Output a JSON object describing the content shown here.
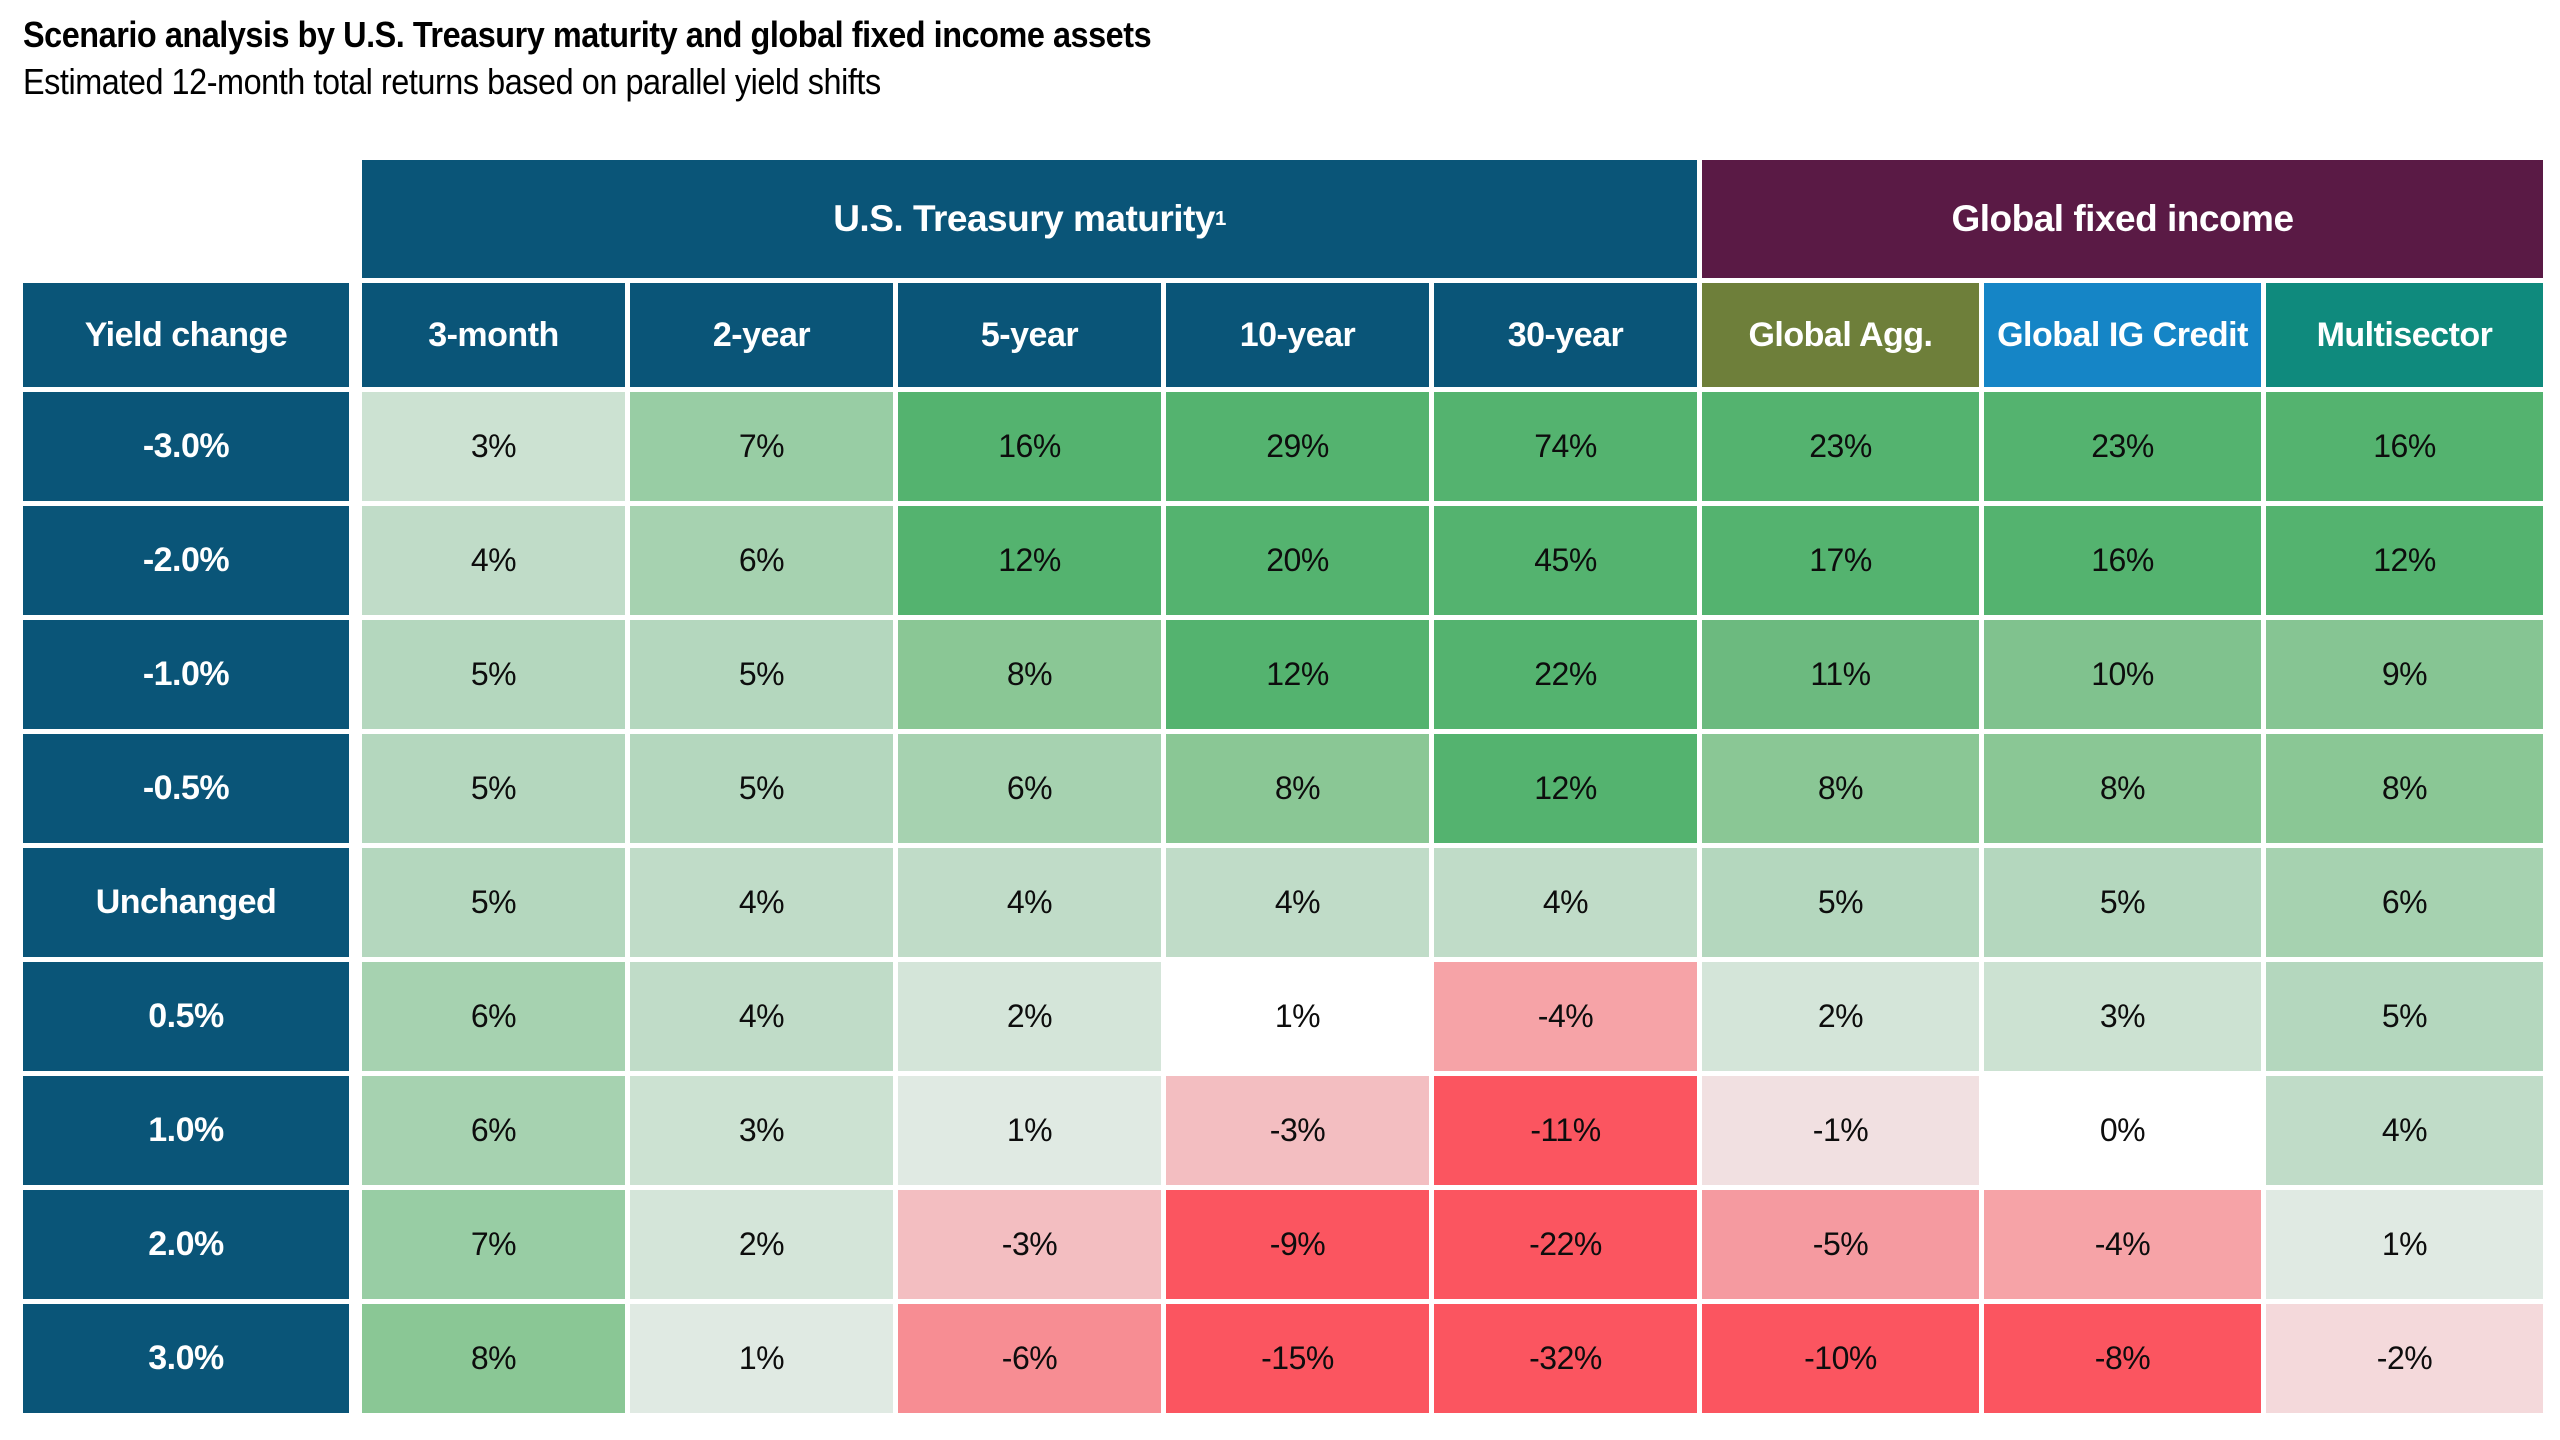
{
  "page": {
    "title": "Scenario analysis by U.S. Treasury maturity and global fixed income assets",
    "subtitle": "Estimated 12-month total returns based on parallel yield shifts"
  },
  "colors": {
    "header_blue": "#0a5578",
    "group_maroon": "#5a1a45",
    "global_agg_olive": "#6e7f3a",
    "global_ig_blue": "#1585c6",
    "multisector_teal": "#0f8a7d",
    "positive_max_green": "#54b36f",
    "negative_max_red": "#fb5560",
    "neutral_white": "#ffffff"
  },
  "table": {
    "corner_header": {
      "label": "Yield change",
      "bg": "#0a5578"
    },
    "group_headers": [
      {
        "label": "U.S. Treasury maturity",
        "footnote_marker": "1",
        "bg": "#0a5578",
        "span": 5
      },
      {
        "label": "Global fixed income",
        "footnote_marker": "",
        "bg": "#5a1a45",
        "span": 3
      }
    ],
    "columns": [
      {
        "label": "3-month",
        "bg": "#0a5578"
      },
      {
        "label": "2-year",
        "bg": "#0a5578"
      },
      {
        "label": "5-year",
        "bg": "#0a5578"
      },
      {
        "label": "10-year",
        "bg": "#0a5578"
      },
      {
        "label": "30-year",
        "bg": "#0a5578"
      },
      {
        "label": "Global Agg.",
        "bg": "#6e7f3a"
      },
      {
        "label": "Global IG Credit",
        "bg": "#1585c6"
      },
      {
        "label": "Multisector",
        "bg": "#0f8a7d"
      }
    ],
    "row_label_bg": "#0a5578",
    "rows": [
      {
        "label": "-3.0%",
        "cells": [
          {
            "text": "3%",
            "bg": "#cce2d2"
          },
          {
            "text": "7%",
            "bg": "#98cda4"
          },
          {
            "text": "16%",
            "bg": "#54b36f"
          },
          {
            "text": "29%",
            "bg": "#54b36f"
          },
          {
            "text": "74%",
            "bg": "#54b36f"
          },
          {
            "text": "23%",
            "bg": "#54b36f"
          },
          {
            "text": "23%",
            "bg": "#54b36f"
          },
          {
            "text": "16%",
            "bg": "#54b36f"
          }
        ]
      },
      {
        "label": "-2.0%",
        "cells": [
          {
            "text": "4%",
            "bg": "#c0dcc8"
          },
          {
            "text": "6%",
            "bg": "#a6d2b0"
          },
          {
            "text": "12%",
            "bg": "#54b36f"
          },
          {
            "text": "20%",
            "bg": "#54b36f"
          },
          {
            "text": "45%",
            "bg": "#54b36f"
          },
          {
            "text": "17%",
            "bg": "#54b36f"
          },
          {
            "text": "16%",
            "bg": "#54b36f"
          },
          {
            "text": "12%",
            "bg": "#54b36f"
          }
        ]
      },
      {
        "label": "-1.0%",
        "cells": [
          {
            "text": "5%",
            "bg": "#b4d7be"
          },
          {
            "text": "5%",
            "bg": "#b4d7be"
          },
          {
            "text": "8%",
            "bg": "#8ac795"
          },
          {
            "text": "12%",
            "bg": "#54b36f"
          },
          {
            "text": "22%",
            "bg": "#54b36f"
          },
          {
            "text": "11%",
            "bg": "#6cba7f"
          },
          {
            "text": "10%",
            "bg": "#80c28e"
          },
          {
            "text": "9%",
            "bg": "#86c593"
          }
        ]
      },
      {
        "label": "-0.5%",
        "cells": [
          {
            "text": "5%",
            "bg": "#b4d7be"
          },
          {
            "text": "5%",
            "bg": "#b4d7be"
          },
          {
            "text": "6%",
            "bg": "#a6d2b0"
          },
          {
            "text": "8%",
            "bg": "#8ac795"
          },
          {
            "text": "12%",
            "bg": "#54b36f"
          },
          {
            "text": "8%",
            "bg": "#8ac795"
          },
          {
            "text": "8%",
            "bg": "#8ac795"
          },
          {
            "text": "8%",
            "bg": "#8ac795"
          }
        ]
      },
      {
        "label": "Unchanged",
        "cells": [
          {
            "text": "5%",
            "bg": "#b4d7be"
          },
          {
            "text": "4%",
            "bg": "#c0dcc8"
          },
          {
            "text": "4%",
            "bg": "#c0dcc8"
          },
          {
            "text": "4%",
            "bg": "#c0dcc8"
          },
          {
            "text": "4%",
            "bg": "#c0dcc8"
          },
          {
            "text": "5%",
            "bg": "#b4d7be"
          },
          {
            "text": "5%",
            "bg": "#b4d7be"
          },
          {
            "text": "6%",
            "bg": "#a6d2b0"
          }
        ]
      },
      {
        "label": "0.5%",
        "cells": [
          {
            "text": "6%",
            "bg": "#a6d2b0"
          },
          {
            "text": "4%",
            "bg": "#c0dcc8"
          },
          {
            "text": "2%",
            "bg": "#d4e5d9"
          },
          {
            "text": "1%",
            "bg": "#ffffff"
          },
          {
            "text": "-4%",
            "bg": "#f6a3a7"
          },
          {
            "text": "2%",
            "bg": "#d4e5d9"
          },
          {
            "text": "3%",
            "bg": "#cce2d2"
          },
          {
            "text": "5%",
            "bg": "#b4d7be"
          }
        ]
      },
      {
        "label": "1.0%",
        "cells": [
          {
            "text": "6%",
            "bg": "#a6d2b0"
          },
          {
            "text": "3%",
            "bg": "#cce2d2"
          },
          {
            "text": "1%",
            "bg": "#e0eae3"
          },
          {
            "text": "-3%",
            "bg": "#f3bec1"
          },
          {
            "text": "-11%",
            "bg": "#fb5560"
          },
          {
            "text": "-1%",
            "bg": "#f1e0e1"
          },
          {
            "text": "0%",
            "bg": "#ffffff"
          },
          {
            "text": "4%",
            "bg": "#c0dcc8"
          }
        ]
      },
      {
        "label": "2.0%",
        "cells": [
          {
            "text": "7%",
            "bg": "#98cda4"
          },
          {
            "text": "2%",
            "bg": "#d4e5d9"
          },
          {
            "text": "-3%",
            "bg": "#f3bec1"
          },
          {
            "text": "-9%",
            "bg": "#fb5560"
          },
          {
            "text": "-22%",
            "bg": "#fb5560"
          },
          {
            "text": "-5%",
            "bg": "#f59aa0"
          },
          {
            "text": "-4%",
            "bg": "#f6a3a7"
          },
          {
            "text": "1%",
            "bg": "#e0eae3"
          }
        ]
      },
      {
        "label": "3.0%",
        "cells": [
          {
            "text": "8%",
            "bg": "#8ac795"
          },
          {
            "text": "1%",
            "bg": "#e0eae3"
          },
          {
            "text": "-6%",
            "bg": "#f78d93"
          },
          {
            "text": "-15%",
            "bg": "#fb5560"
          },
          {
            "text": "-32%",
            "bg": "#fb5560"
          },
          {
            "text": "-10%",
            "bg": "#fb5560"
          },
          {
            "text": "-8%",
            "bg": "#fb5560"
          },
          {
            "text": "-2%",
            "bg": "#f4d9db"
          }
        ]
      }
    ]
  },
  "chart_data": {
    "type": "heatmap",
    "title": "Scenario analysis by U.S. Treasury maturity and global fixed income assets",
    "subtitle": "Estimated 12-month total returns based on parallel yield shifts",
    "row_axis_label": "Yield change",
    "column_groups": [
      {
        "label": "U.S. Treasury maturity",
        "footnote_marker": "1",
        "columns": [
          "3-month",
          "2-year",
          "5-year",
          "10-year",
          "30-year"
        ]
      },
      {
        "label": "Global fixed income",
        "columns": [
          "Global Agg.",
          "Global IG Credit",
          "Multisector"
        ]
      }
    ],
    "rows": [
      "-3.0%",
      "-2.0%",
      "-1.0%",
      "-0.5%",
      "Unchanged",
      "0.5%",
      "1.0%",
      "2.0%",
      "3.0%"
    ],
    "values_pct": [
      [
        3,
        7,
        16,
        29,
        74,
        23,
        23,
        16
      ],
      [
        4,
        6,
        12,
        20,
        45,
        17,
        16,
        12
      ],
      [
        5,
        5,
        8,
        12,
        22,
        11,
        10,
        9
      ],
      [
        5,
        5,
        6,
        8,
        12,
        8,
        8,
        8
      ],
      [
        5,
        4,
        4,
        4,
        4,
        5,
        5,
        6
      ],
      [
        6,
        4,
        2,
        1,
        -4,
        2,
        3,
        5
      ],
      [
        6,
        3,
        1,
        -3,
        -11,
        -1,
        0,
        4
      ],
      [
        7,
        2,
        -3,
        -9,
        -22,
        -5,
        -4,
        1
      ],
      [
        8,
        1,
        -6,
        -15,
        -32,
        -10,
        -8,
        -2
      ]
    ],
    "color_scale": {
      "positive_max": "#54b36f",
      "neutral": "#ffffff",
      "negative_max": "#fb5560"
    },
    "legend": "none",
    "grid": "white gutters between cells"
  }
}
